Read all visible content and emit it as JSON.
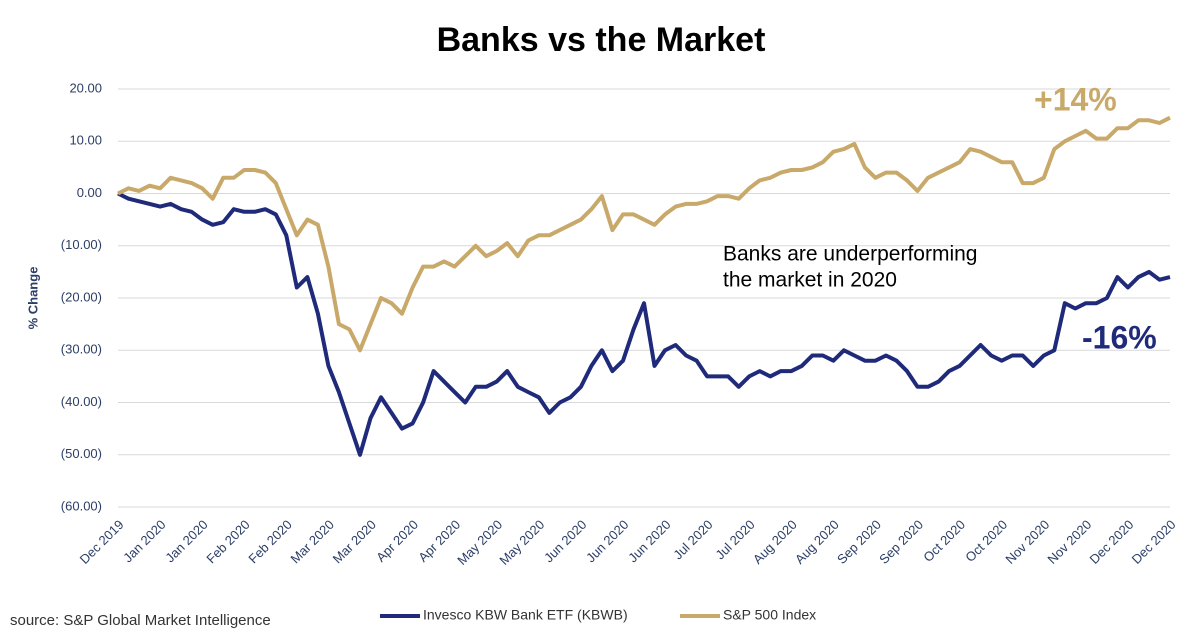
{
  "chart_data": {
    "type": "line",
    "title": "Banks vs the Market",
    "y_label": "% Change",
    "source": "source: S&P Global Market Intelligence",
    "annotations": [
      {
        "lines": [
          "Banks are underperforming",
          "the market in 2020"
        ]
      },
      {
        "text": "+14%",
        "color": "#c8a96a"
      },
      {
        "text": "-16%",
        "color": "#1f2a7a"
      }
    ],
    "categories": [
      "Dec 2019",
      null,
      null,
      null,
      "Jan 2020",
      null,
      null,
      null,
      "Jan 2020",
      null,
      null,
      null,
      "Feb 2020",
      null,
      null,
      null,
      "Feb 2020",
      null,
      null,
      null,
      "Mar 2020",
      null,
      null,
      null,
      "Mar 2020",
      null,
      null,
      null,
      "Apr 2020",
      null,
      null,
      null,
      "Apr 2020",
      null,
      null,
      null,
      "May 2020",
      null,
      null,
      null,
      "May 2020",
      null,
      null,
      null,
      "Jun 2020",
      null,
      null,
      null,
      "Jun 2020",
      null,
      null,
      null,
      "Jun 2020",
      null,
      null,
      null,
      "Jul 2020",
      null,
      null,
      null,
      "Jul 2020",
      null,
      null,
      null,
      "Aug 2020",
      null,
      null,
      null,
      "Aug 2020",
      null,
      null,
      null,
      "Sep 2020",
      null,
      null,
      null,
      "Sep 2020",
      null,
      null,
      null,
      "Oct 2020",
      null,
      null,
      null,
      "Oct 2020",
      null,
      null,
      null,
      "Nov 2020",
      null,
      null,
      null,
      "Nov 2020",
      null,
      null,
      null,
      "Dec 2020",
      null,
      null,
      null,
      "Dec 2020"
    ],
    "series": [
      {
        "name": "Invesco KBW Bank ETF (KBWB)",
        "color": "#1f2a7a",
        "values": [
          0,
          -1,
          -1.5,
          -2,
          -2.5,
          -2,
          -3,
          -3.5,
          -5,
          -6,
          -5.5,
          -3,
          -3.5,
          -3.5,
          -3,
          -4,
          -8,
          -18,
          -16,
          -23,
          -33,
          -38,
          -44,
          -50,
          -43,
          -39,
          -42,
          -45,
          -44,
          -40,
          -34,
          -36,
          -38,
          -40,
          -37,
          -37,
          -36,
          -34,
          -37,
          -38,
          -39,
          -42,
          -40,
          -39,
          -37,
          -33,
          -30,
          -34,
          -32,
          -26,
          -21,
          -33,
          -30,
          -29,
          -31,
          -32,
          -35,
          -35,
          -35,
          -37,
          -35,
          -34,
          -35,
          -34,
          -34,
          -33,
          -31,
          -31,
          -32,
          -30,
          -31,
          -32,
          -32,
          -31,
          -32,
          -34,
          -37,
          -37,
          -36,
          -34,
          -33,
          -31,
          -29,
          -31,
          -32,
          -31,
          -31,
          -33,
          -31,
          -30,
          -21,
          -22,
          -21,
          -21,
          -20,
          -16,
          -18,
          -16,
          -15,
          -16.5,
          -16
        ]
      },
      {
        "name": "S&P 500 Index",
        "color": "#c8a96a",
        "values": [
          0,
          1,
          0.5,
          1.5,
          1,
          3,
          2.5,
          2,
          1,
          -1,
          3,
          3,
          4.5,
          4.5,
          4,
          2,
          -3,
          -8,
          -5,
          -6,
          -14,
          -25,
          -26,
          -30,
          -25,
          -20,
          -21,
          -23,
          -18,
          -14,
          -14,
          -13,
          -14,
          -12,
          -10,
          -12,
          -11,
          -9.5,
          -12,
          -9,
          -8,
          -8,
          -7,
          -6,
          -5,
          -3,
          -0.5,
          -7,
          -4,
          -4,
          -5,
          -6,
          -4,
          -2.5,
          -2,
          -2,
          -1.5,
          -0.5,
          -0.5,
          -1,
          1,
          2.5,
          3,
          4,
          4.5,
          4.5,
          5,
          6,
          8,
          8.5,
          9.5,
          5,
          3,
          4,
          4,
          2.5,
          0.5,
          3,
          4,
          5,
          6,
          8.5,
          8,
          7,
          6,
          6,
          2,
          2,
          3,
          8.5,
          10,
          11,
          12,
          10.5,
          10.5,
          12.5,
          12.5,
          14,
          14,
          13.5,
          14.5
        ]
      }
    ],
    "ylim": [
      -60,
      20
    ],
    "yticks": [
      {
        "value": 20,
        "label": "20.00"
      },
      {
        "value": 10,
        "label": "10.00"
      },
      {
        "value": 0,
        "label": "0.00"
      },
      {
        "value": -10,
        "label": "(10.00)"
      },
      {
        "value": -20,
        "label": "(20.00)"
      },
      {
        "value": -30,
        "label": "(30.00)"
      },
      {
        "value": -40,
        "label": "(40.00)"
      },
      {
        "value": -50,
        "label": "(50.00)"
      },
      {
        "value": -60,
        "label": "(60.00)"
      }
    ],
    "grid": true,
    "legend": "bottom"
  }
}
